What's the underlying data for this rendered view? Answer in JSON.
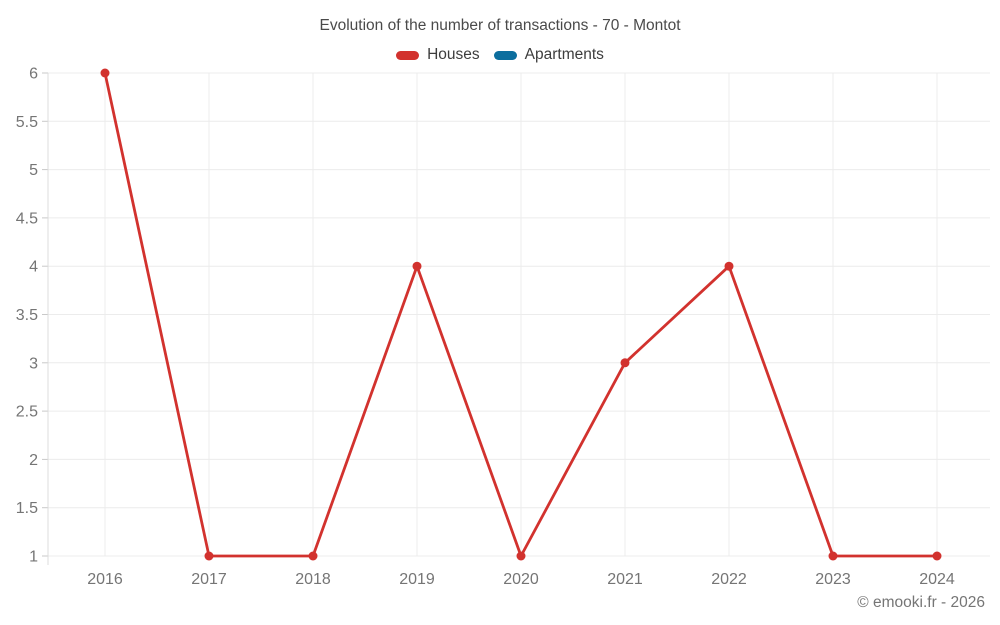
{
  "title": "Evolution of the number of transactions - 70 - Montot",
  "legend": {
    "items": [
      {
        "label": "Houses",
        "color": "#d2322e"
      },
      {
        "label": "Apartments",
        "color": "#0c6e9e"
      }
    ]
  },
  "footer": {
    "copyright": "© emooki.fr - 2026"
  },
  "colors": {
    "houses_series": "#d2322e",
    "apartments_series": "#0c6e9e",
    "gridline": "#ececec",
    "axis_line": "#dcdcdc",
    "tick": "#c9c9c9",
    "axis_label": "#757575",
    "title_text": "#4a4a4a"
  },
  "chart_data": {
    "type": "line",
    "title": "Evolution of the number of transactions - 70 - Montot",
    "x": [
      "2016",
      "2017",
      "2018",
      "2019",
      "2020",
      "2021",
      "2022",
      "2023",
      "2024"
    ],
    "series": [
      {
        "name": "Houses",
        "color": "#d2322e",
        "values": [
          6,
          1,
          1,
          4,
          1,
          3,
          4,
          1,
          1
        ]
      },
      {
        "name": "Apartments",
        "color": "#0c6e9e",
        "values": []
      }
    ],
    "xlabel": "",
    "ylabel": "",
    "ylim": [
      1,
      6
    ],
    "ytick_step": 0.5,
    "ytick_labels": [
      "1",
      "1.5",
      "2",
      "2.5",
      "3",
      "3.5",
      "4",
      "4.5",
      "5",
      "5.5",
      "6"
    ],
    "grid": true,
    "legend_position": "top",
    "annotations": []
  }
}
